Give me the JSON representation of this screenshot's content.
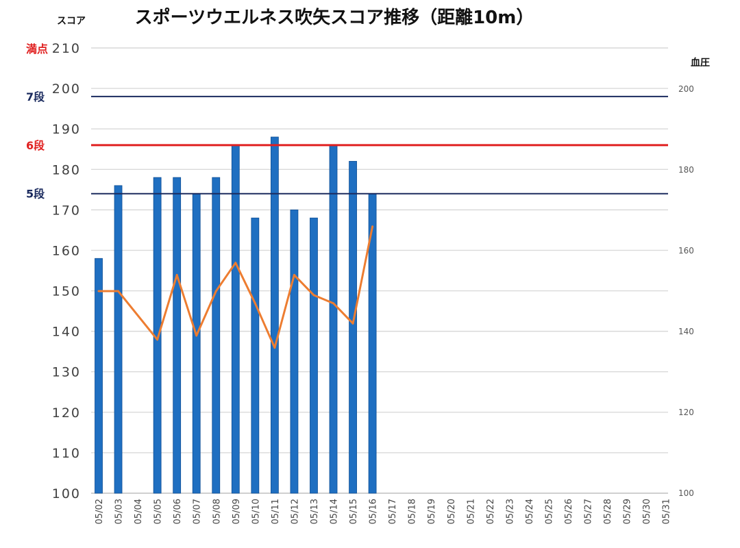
{
  "chart_data": {
    "type": "bar",
    "title": "スポーツウエルネス吹矢スコア推移（距離10m）",
    "ylabel": "スコア",
    "y2label": "血圧",
    "ylim": [
      100,
      210
    ],
    "y2lim": [
      100,
      200
    ],
    "yticks": [
      "100",
      "110",
      "120",
      "130",
      "140",
      "150",
      "160",
      "170",
      "180",
      "190",
      "200",
      "210"
    ],
    "y2ticks": [
      "100",
      "120",
      "140",
      "160",
      "180",
      "200"
    ],
    "grid": true,
    "categories": [
      "05/02",
      "05/03",
      "05/04",
      "05/05",
      "05/06",
      "05/07",
      "05/08",
      "05/09",
      "05/10",
      "05/11",
      "05/12",
      "05/13",
      "05/14",
      "05/15",
      "05/16",
      "05/17",
      "05/18",
      "05/19",
      "05/20",
      "05/21",
      "05/22",
      "05/23",
      "05/24",
      "05/25",
      "05/26",
      "05/27",
      "05/28",
      "05/29",
      "05/30",
      "05/31"
    ],
    "series": [
      {
        "kind": "bar",
        "axis": "left",
        "color": "#1f6fc1",
        "values": [
          158,
          176,
          null,
          178,
          178,
          174,
          178,
          186,
          168,
          188,
          170,
          168,
          186,
          182,
          174,
          null,
          null,
          null,
          null,
          null,
          null,
          null,
          null,
          null,
          null,
          null,
          null,
          null,
          null,
          null
        ]
      },
      {
        "kind": "line",
        "axis": "right",
        "color": "#ed7d31",
        "values": [
          150,
          150,
          null,
          138,
          154,
          139,
          150,
          157,
          147,
          136,
          154,
          149,
          147,
          142,
          166,
          null,
          null,
          null,
          null,
          null,
          null,
          null,
          null,
          null,
          null,
          null,
          null,
          null,
          null,
          null
        ]
      }
    ],
    "reference_lines": [
      {
        "label": "満点",
        "value": 210,
        "color": "#e02020",
        "draw_line": false
      },
      {
        "label": "7段",
        "value": 198,
        "color": "#1a2a5e",
        "draw_line": true
      },
      {
        "label": "6段",
        "value": 186,
        "color": "#e02020",
        "draw_line": true
      },
      {
        "label": "5段",
        "value": 174,
        "color": "#1a2a5e",
        "draw_line": true
      }
    ]
  }
}
